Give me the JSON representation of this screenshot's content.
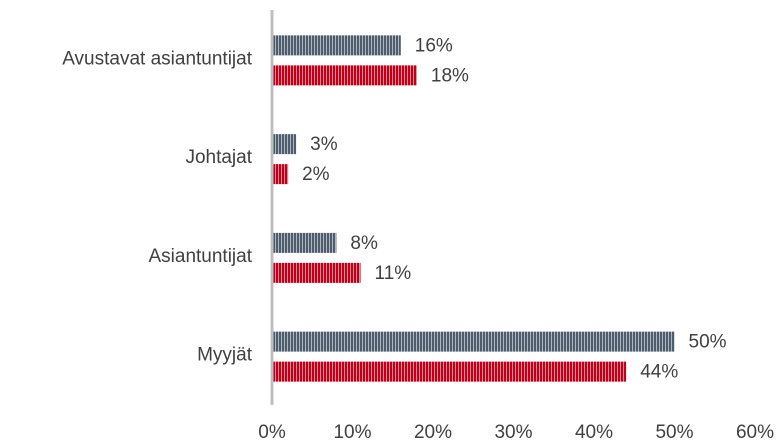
{
  "chart_data": {
    "type": "hbar",
    "categories": [
      "Avustavat asiantuntijat",
      "Johtajat",
      "Asiantuntijat",
      "Myyjät"
    ],
    "series": [
      {
        "color": "#4d5d6e",
        "values": [
          16,
          3,
          8,
          50
        ],
        "value_labels": [
          "16%",
          "3%",
          "8%",
          "50%"
        ]
      },
      {
        "color": "#c00018",
        "values": [
          18,
          2,
          11,
          44
        ],
        "value_labels": [
          "18%",
          "2%",
          "11%",
          "44%"
        ]
      }
    ],
    "xlim": [
      0,
      60
    ],
    "xticks": [
      {
        "value": 0,
        "label": "0%"
      },
      {
        "value": 10,
        "label": "10%"
      },
      {
        "value": 20,
        "label": "20%"
      },
      {
        "value": 30,
        "label": "30%"
      },
      {
        "value": 40,
        "label": "40%"
      },
      {
        "value": 50,
        "label": "50%"
      },
      {
        "value": 60,
        "label": "60%"
      }
    ]
  }
}
